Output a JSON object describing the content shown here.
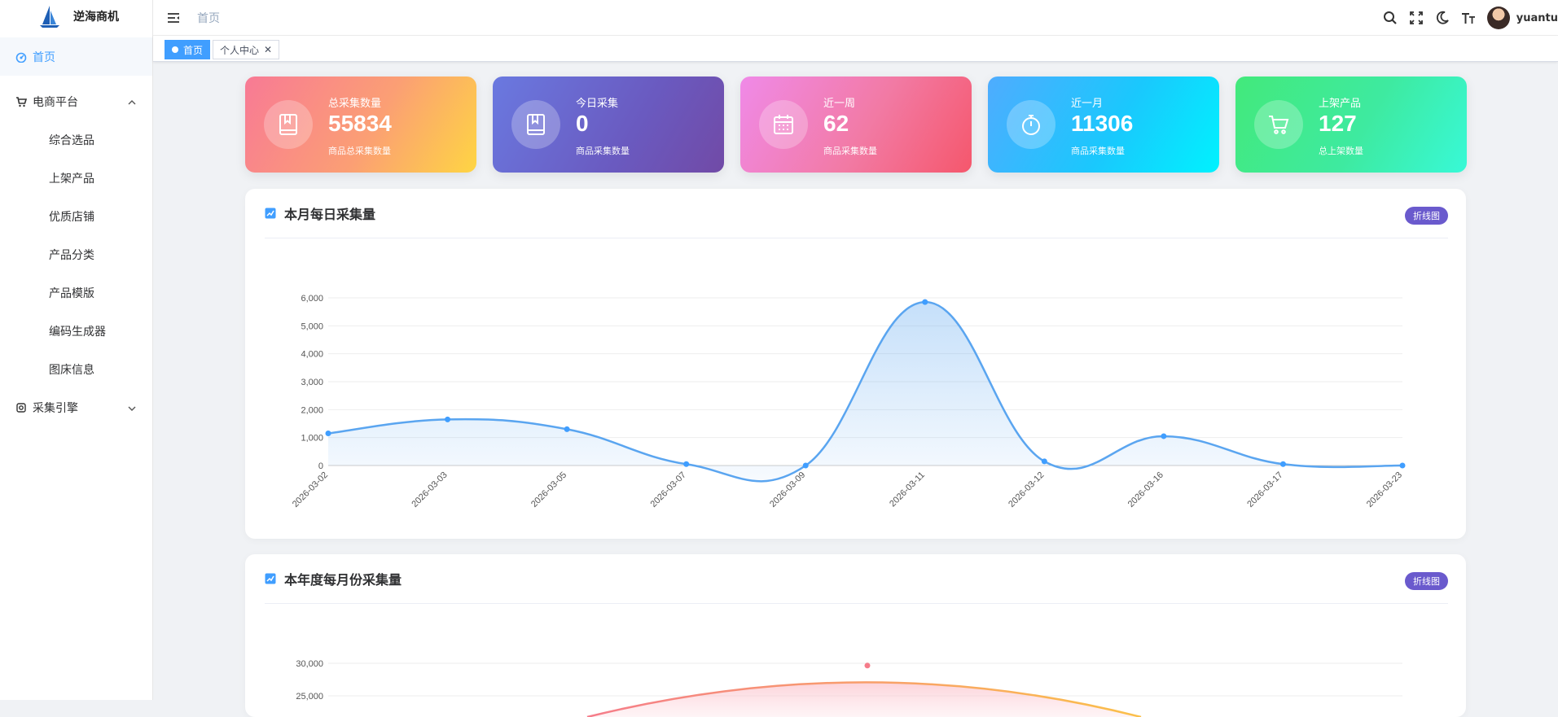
{
  "app": {
    "brand": "逆海商机"
  },
  "sidebar": {
    "items": [
      {
        "label": "首页",
        "icon": "dashboard-icon"
      },
      {
        "label": "电商平台",
        "icon": "cart-icon"
      },
      {
        "label": "采集引擎",
        "icon": "engine-icon"
      }
    ],
    "sub_items": [
      "综合选品",
      "上架产品",
      "优质店铺",
      "产品分类",
      "产品模版",
      "编码生成器",
      "图床信息"
    ]
  },
  "header": {
    "breadcrumb": "首页",
    "username": "yuantu"
  },
  "tags": [
    {
      "label": "首页"
    },
    {
      "label": "个人中心"
    }
  ],
  "stats": [
    {
      "title": "总采集数量",
      "value": "55834",
      "subtitle": "商品总采集数量",
      "icon": "book-icon"
    },
    {
      "title": "今日采集",
      "value": "0",
      "subtitle": "商品采集数量",
      "icon": "book-icon"
    },
    {
      "title": "近一周",
      "value": "62",
      "subtitle": "商品采集数量",
      "icon": "calendar-icon"
    },
    {
      "title": "近一月",
      "value": "11306",
      "subtitle": "商品采集数量",
      "icon": "stopwatch-icon"
    },
    {
      "title": "上架产品",
      "value": "127",
      "subtitle": "总上架数量",
      "icon": "cart-icon"
    }
  ],
  "panels": [
    {
      "title": "本月每日采集量",
      "badge": "折线图"
    },
    {
      "title": "本年度每月份采集量",
      "badge": "折线图"
    }
  ],
  "colors": {
    "accent": "#409eff",
    "daily_line": "#5aa5f0",
    "monthly_line": "#f59a7b",
    "badge": "#6a5acd"
  },
  "chart_data": [
    {
      "type": "area",
      "categories": [
        "2026-03-02",
        "2026-03-03",
        "2026-03-05",
        "2026-03-07",
        "2026-03-09",
        "2026-03-11",
        "2026-03-12",
        "2026-03-16",
        "2026-03-17",
        "2026-03-23"
      ],
      "values": [
        1150,
        1650,
        1300,
        50,
        0,
        5850,
        150,
        1050,
        50,
        0
      ],
      "yticks": [
        0,
        1000,
        2000,
        3000,
        4000,
        5000,
        6000
      ],
      "ylim": [
        0,
        6000
      ],
      "grid": true
    },
    {
      "type": "area",
      "values_visible_peak": 29900,
      "yticks": [
        25000,
        30000
      ],
      "grid": true
    }
  ]
}
